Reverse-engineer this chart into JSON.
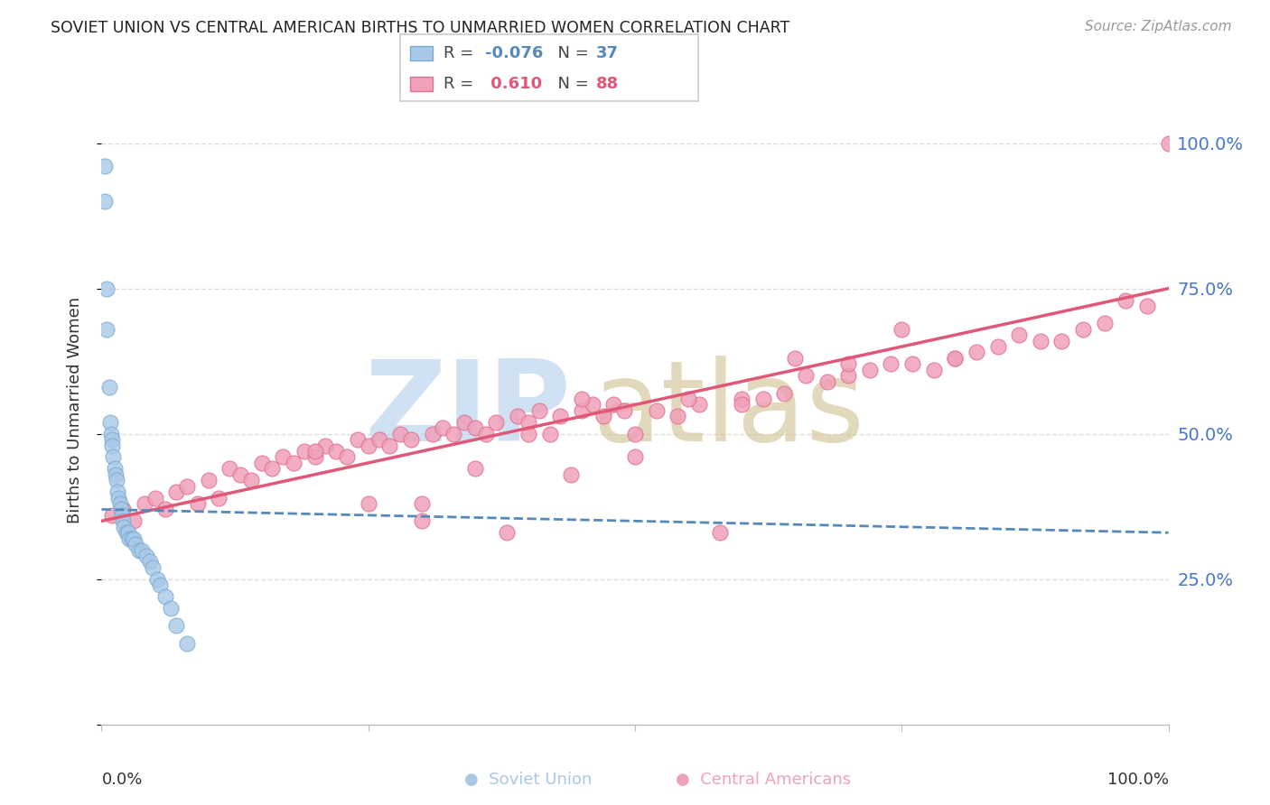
{
  "title": "SOVIET UNION VS CENTRAL AMERICAN BIRTHS TO UNMARRIED WOMEN CORRELATION CHART",
  "source": "Source: ZipAtlas.com",
  "ylabel": "Births to Unmarried Women",
  "ytick_labels": [
    "",
    "25.0%",
    "50.0%",
    "75.0%",
    "100.0%"
  ],
  "ytick_values": [
    0,
    25,
    50,
    75,
    100
  ],
  "xlim": [
    0,
    100
  ],
  "ylim": [
    0,
    108
  ],
  "blue_dot_color": "#A8C8E8",
  "blue_edge_color": "#7AAAD0",
  "blue_line_color": "#5588BB",
  "pink_dot_color": "#F0A0B8",
  "pink_edge_color": "#E07090",
  "pink_line_color": "#E05878",
  "watermark_zip_color": "#C0D8EE",
  "watermark_atlas_color": "#D0C090",
  "background_color": "#FFFFFF",
  "title_color": "#222222",
  "source_color": "#999999",
  "ytick_color": "#4477CC",
  "grid_color": "#DDDDDD",
  "bottom_label_color": "#333333",
  "legend_text_color": "#444444",
  "soviet_x": [
    0.3,
    0.3,
    0.5,
    0.5,
    0.7,
    0.8,
    0.9,
    1.0,
    1.0,
    1.1,
    1.2,
    1.3,
    1.4,
    1.5,
    1.6,
    1.7,
    1.8,
    1.9,
    2.0,
    2.1,
    2.3,
    2.5,
    2.6,
    2.8,
    3.0,
    3.2,
    3.5,
    3.8,
    4.2,
    4.5,
    4.8,
    5.2,
    5.5,
    6.0,
    6.5,
    7.0,
    8.0
  ],
  "soviet_y": [
    96,
    90,
    75,
    68,
    58,
    52,
    50,
    49,
    48,
    46,
    44,
    43,
    42,
    40,
    39,
    38,
    37,
    36,
    35,
    34,
    33,
    33,
    32,
    32,
    32,
    31,
    30,
    30,
    29,
    28,
    27,
    25,
    24,
    22,
    20,
    17,
    14
  ],
  "central_x": [
    1.0,
    2.0,
    3.0,
    4.0,
    5.0,
    6.0,
    7.0,
    8.0,
    9.0,
    10.0,
    11.0,
    12.0,
    13.0,
    14.0,
    15.0,
    16.0,
    17.0,
    18.0,
    19.0,
    20.0,
    21.0,
    22.0,
    23.0,
    24.0,
    25.0,
    26.0,
    27.0,
    28.0,
    29.0,
    30.0,
    31.0,
    32.0,
    33.0,
    34.0,
    35.0,
    36.0,
    37.0,
    38.0,
    39.0,
    40.0,
    41.0,
    42.0,
    43.0,
    44.0,
    45.0,
    46.0,
    47.0,
    48.0,
    49.0,
    50.0,
    52.0,
    54.0,
    56.0,
    58.0,
    60.0,
    62.0,
    64.0,
    66.0,
    68.0,
    70.0,
    72.0,
    74.0,
    76.0,
    78.0,
    80.0,
    82.0,
    84.0,
    86.0,
    88.0,
    90.0,
    92.0,
    94.0,
    96.0,
    98.0,
    100.0,
    20.0,
    25.0,
    30.0,
    35.0,
    40.0,
    45.0,
    50.0,
    55.0,
    60.0,
    65.0,
    70.0,
    75.0,
    80.0
  ],
  "central_y": [
    36,
    37,
    35,
    38,
    39,
    37,
    40,
    41,
    38,
    42,
    39,
    44,
    43,
    42,
    45,
    44,
    46,
    45,
    47,
    46,
    48,
    47,
    46,
    49,
    48,
    49,
    48,
    50,
    49,
    38,
    50,
    51,
    50,
    52,
    51,
    50,
    52,
    33,
    53,
    52,
    54,
    50,
    53,
    43,
    54,
    55,
    53,
    55,
    54,
    50,
    54,
    53,
    55,
    33,
    56,
    56,
    57,
    60,
    59,
    60,
    61,
    62,
    62,
    61,
    63,
    64,
    65,
    67,
    66,
    66,
    68,
    69,
    73,
    72,
    100,
    47,
    38,
    35,
    44,
    50,
    56,
    46,
    56,
    55,
    63,
    62,
    68,
    63
  ],
  "pink_line_y0": 35.0,
  "pink_line_y1": 75.0,
  "blue_line_y0": 37.0,
  "blue_line_y1": 33.0
}
